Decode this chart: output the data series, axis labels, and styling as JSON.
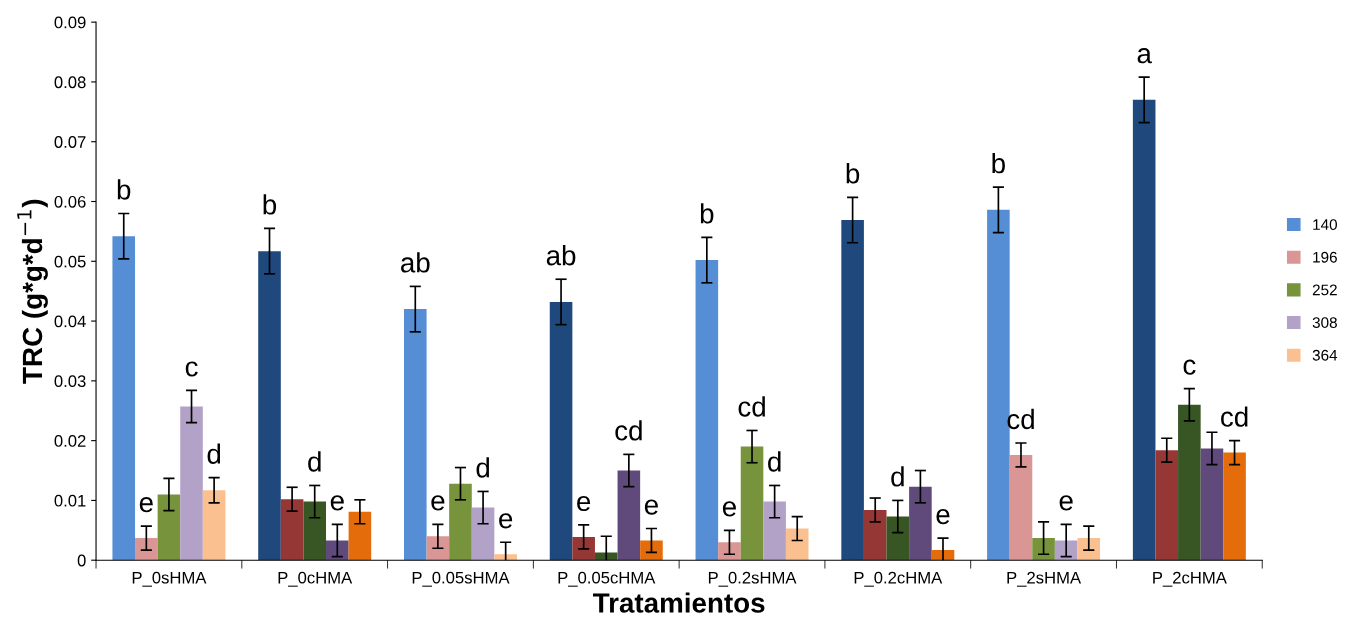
{
  "chart_data": {
    "type": "bar",
    "xlabel": "Tratamientos",
    "ylabel": "TRC (g*g*d$^{−1}$)",
    "categories": [
      "P_0sHMA",
      "P_0cHMA",
      "P_0.05sHMA",
      "P_0.05cHMA",
      "P_0.2sHMA",
      "P_0.2cHMA",
      "P_2sHMA",
      "P_2cHMA"
    ],
    "ylim": [
      0,
      0.09
    ],
    "yticks": [
      0,
      0.01,
      0.02,
      0.03,
      0.04,
      0.05,
      0.06,
      0.07,
      0.08,
      0.09
    ],
    "grid": false,
    "legend": "right",
    "series": [
      {
        "name": "140",
        "color": "#558ed5",
        "colors": [
          "#558ed5",
          "#1f497d",
          "#558ed5",
          "#1f497d",
          "#558ed5",
          "#1f497d",
          "#558ed5",
          "#1f497d"
        ],
        "values": [
          0.0542,
          0.0517,
          0.042,
          0.0432,
          0.0502,
          0.0569,
          0.0586,
          0.077
        ],
        "errors": [
          0.0038,
          0.0038,
          0.0038,
          0.0038,
          0.0038,
          0.0038,
          0.0038,
          0.0038
        ],
        "value_labels": [
          "b",
          "b",
          "ab",
          "ab",
          "b",
          "b",
          "b",
          "a"
        ]
      },
      {
        "name": "196",
        "color": "#d99694",
        "colors": [
          "#d99694",
          "#953735",
          "#d99694",
          "#953735",
          "#d99694",
          "#953735",
          "#d99694",
          "#953735"
        ],
        "values": [
          0.0037,
          0.0102,
          0.004,
          0.0039,
          0.003,
          0.0084,
          0.0176,
          0.0184
        ],
        "errors": [
          0.002,
          0.002,
          0.002,
          0.002,
          0.002,
          0.002,
          0.002,
          0.002
        ],
        "value_labels": [
          "e",
          null,
          "e",
          "e",
          "e",
          null,
          "cd",
          null
        ]
      },
      {
        "name": "252",
        "color": "#77933c",
        "colors": [
          "#77933c",
          "#375623",
          "#77933c",
          "#375623",
          "#77933c",
          "#375623",
          "#77933c",
          "#375623"
        ],
        "values": [
          0.011,
          0.0098,
          0.0128,
          0.0013,
          0.019,
          0.0073,
          0.0037,
          0.026
        ],
        "errors": [
          0.0027,
          0.0027,
          0.0027,
          0.0027,
          0.0027,
          0.0027,
          0.0027,
          0.0027
        ],
        "value_labels": [
          null,
          "d",
          null,
          null,
          "cd",
          "d",
          null,
          "c"
        ]
      },
      {
        "name": "308",
        "color": "#b3a2c7",
        "colors": [
          "#b3a2c7",
          "#604a7b",
          "#b3a2c7",
          "#604a7b",
          "#b3a2c7",
          "#604a7b",
          "#b3a2c7",
          "#604a7b"
        ],
        "values": [
          0.0257,
          0.0033,
          0.0088,
          0.015,
          0.0098,
          0.0123,
          0.0033,
          0.0187
        ],
        "errors": [
          0.0027,
          0.0027,
          0.0027,
          0.0027,
          0.0027,
          0.0027,
          0.0027,
          0.0027
        ],
        "value_labels": [
          "c",
          "e",
          "d",
          "cd",
          "d",
          null,
          "e",
          null
        ]
      },
      {
        "name": "364",
        "color": "#fac090",
        "colors": [
          "#fac090",
          "#e46c0a",
          "#fac090",
          "#e46c0a",
          "#fac090",
          "#e46c0a",
          "#fac090",
          "#e46c0a"
        ],
        "values": [
          0.0117,
          0.0081,
          0.001,
          0.0033,
          0.0053,
          0.0017,
          0.0037,
          0.018
        ],
        "errors": [
          0.0021,
          0.002,
          0.002,
          0.002,
          0.002,
          0.002,
          0.002,
          0.002
        ],
        "value_labels": [
          "d",
          null,
          "e",
          "e",
          null,
          "e",
          null,
          "cd"
        ]
      }
    ]
  }
}
